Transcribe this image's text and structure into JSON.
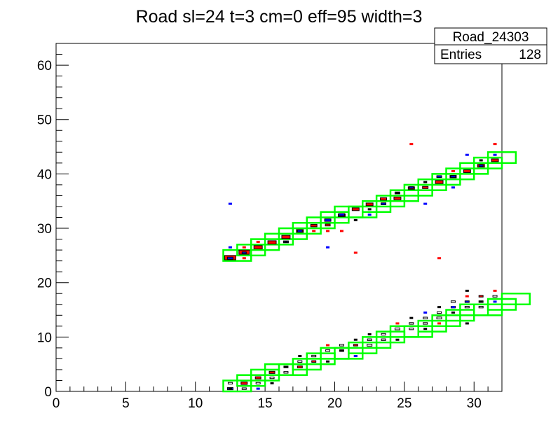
{
  "chart_data": {
    "type": "heatmap",
    "title": "Road sl=24 t=3 cm=0 eff=95 width=3",
    "xlabel": "",
    "ylabel": "",
    "xlim": [
      0,
      32
    ],
    "ylim": [
      0,
      64
    ],
    "x_ticks": [
      "0",
      "5",
      "10",
      "15",
      "20",
      "25",
      "30"
    ],
    "y_ticks": [
      "0",
      "10",
      "20",
      "30",
      "40",
      "50",
      "60"
    ],
    "grid": false,
    "stats_box": {
      "name": "Road_24303",
      "entries_label": "Entries",
      "entries_value": "128"
    },
    "colors": {
      "road": "#00ff00",
      "hit_red": "#ff0000",
      "hit_blue": "#0000ff",
      "axes": "#000000"
    },
    "road_bins": [
      [
        12,
        24
      ],
      [
        13,
        25
      ],
      [
        14,
        26
      ],
      [
        15,
        27
      ],
      [
        16,
        28
      ],
      [
        17,
        29
      ],
      [
        18,
        30
      ],
      [
        19,
        31
      ],
      [
        20,
        32
      ],
      [
        21,
        32
      ],
      [
        22,
        33
      ],
      [
        23,
        34
      ],
      [
        24,
        35
      ],
      [
        25,
        36
      ],
      [
        26,
        37
      ],
      [
        27,
        38
      ],
      [
        28,
        39
      ],
      [
        29,
        40
      ],
      [
        30,
        41
      ],
      [
        31,
        42
      ],
      [
        12,
        0
      ],
      [
        13,
        1
      ],
      [
        14,
        2
      ],
      [
        15,
        3
      ],
      [
        16,
        3
      ],
      [
        17,
        4
      ],
      [
        18,
        5
      ],
      [
        19,
        6
      ],
      [
        20,
        6
      ],
      [
        21,
        7
      ],
      [
        22,
        8
      ],
      [
        23,
        9
      ],
      [
        24,
        10
      ],
      [
        25,
        10
      ],
      [
        26,
        11
      ],
      [
        27,
        12
      ],
      [
        28,
        13
      ],
      [
        29,
        14
      ],
      [
        30,
        14
      ],
      [
        31,
        15
      ],
      [
        32,
        16
      ]
    ],
    "red_boxes": [
      [
        12.5,
        24.6,
        0.8
      ],
      [
        13.5,
        25.6,
        0.75
      ],
      [
        14.5,
        26.5,
        0.6
      ],
      [
        15.5,
        27.4,
        0.6
      ],
      [
        16.5,
        28.4,
        0.6
      ],
      [
        17.5,
        29.5,
        0.5
      ],
      [
        18.5,
        30.5,
        0.45
      ],
      [
        19.5,
        30.6,
        0.35
      ],
      [
        20.5,
        32.4,
        0.5
      ],
      [
        21.5,
        33.5,
        0.5
      ],
      [
        22.5,
        34.4,
        0.5
      ],
      [
        23.5,
        35.4,
        0.45
      ],
      [
        24.5,
        35.5,
        0.5
      ],
      [
        25.5,
        37.4,
        0.45
      ],
      [
        26.5,
        37.5,
        0.4
      ],
      [
        27.5,
        38.5,
        0.55
      ],
      [
        28.5,
        39.5,
        0.45
      ],
      [
        29.5,
        40.5,
        0.5
      ],
      [
        30.5,
        41.5,
        0.5
      ],
      [
        31.5,
        42.5,
        0.5
      ],
      [
        13.5,
        1.5,
        0.45
      ],
      [
        14.5,
        2.5,
        0.4
      ],
      [
        15.5,
        3.5,
        0.4
      ],
      [
        17.5,
        4.5,
        0.35
      ],
      [
        18.5,
        5.5,
        0.3
      ],
      [
        20.5,
        7.5,
        0.3
      ],
      [
        21.5,
        8.5,
        0.3
      ],
      [
        28.5,
        15.5,
        0.3
      ],
      [
        30.5,
        17.5,
        0.3
      ]
    ],
    "blue_boxes": [
      [
        12.5,
        24.5,
        0.4
      ],
      [
        13.5,
        25.5,
        0.3
      ],
      [
        16.5,
        27.5,
        0.35
      ],
      [
        17.5,
        29.5,
        0.35
      ],
      [
        19.5,
        31.5,
        0.45
      ],
      [
        20.5,
        32.5,
        0.4
      ],
      [
        23.5,
        34.5,
        0.35
      ],
      [
        24.5,
        36.5,
        0.35
      ],
      [
        25.5,
        37.5,
        0.3
      ],
      [
        27.5,
        39.5,
        0.35
      ],
      [
        28.5,
        39.5,
        0.35
      ],
      [
        30.5,
        41.5,
        0.3
      ],
      [
        12.5,
        0.5,
        0.4
      ],
      [
        29.5,
        16.5,
        0.3
      ]
    ],
    "hollow_boxes": [
      [
        12.5,
        1.5,
        0.3
      ],
      [
        14.5,
        1.5,
        0.3
      ],
      [
        15.5,
        2.5,
        0.3
      ],
      [
        16.5,
        3.5,
        0.3
      ],
      [
        17.5,
        5.5,
        0.3
      ],
      [
        18.5,
        6.5,
        0.3
      ],
      [
        19.5,
        7.5,
        0.3
      ],
      [
        20.5,
        8.5,
        0.3
      ],
      [
        22.5,
        8.5,
        0.35
      ],
      [
        22.5,
        9.5,
        0.3
      ],
      [
        23.5,
        10.5,
        0.3
      ],
      [
        24.5,
        11.5,
        0.35
      ],
      [
        25.5,
        11.5,
        0.3
      ],
      [
        25.5,
        12.5,
        0.3
      ],
      [
        26.5,
        13.5,
        0.3
      ],
      [
        27.5,
        13.5,
        0.35
      ],
      [
        27.5,
        14.5,
        0.3
      ],
      [
        28.5,
        16.5,
        0.3
      ],
      [
        29.5,
        15.5,
        0.3
      ],
      [
        30.5,
        15.5,
        0.3
      ],
      [
        30.5,
        16.5,
        0.3
      ],
      [
        31.5,
        17.5,
        0.3
      ],
      [
        13.5,
        0.5,
        0.3
      ],
      [
        16.5,
        4.5,
        0.3
      ],
      [
        23.5,
        9.5,
        0.3
      ],
      [
        26.5,
        12.5,
        0.3
      ]
    ],
    "tiny_marks_red": [
      [
        13.5,
        26.5
      ],
      [
        13.5,
        24.5
      ],
      [
        14.5,
        27.5
      ],
      [
        18.5,
        29.5
      ],
      [
        19.5,
        29.5
      ],
      [
        20.5,
        29.5
      ],
      [
        21.5,
        25.5
      ],
      [
        25.5,
        45.5
      ],
      [
        27.5,
        24.5
      ],
      [
        28.5,
        40.5
      ],
      [
        31.5,
        45.5
      ],
      [
        19.5,
        8.5
      ],
      [
        21.5,
        6.5
      ],
      [
        24.5,
        12.5
      ],
      [
        27.5,
        12.5
      ],
      [
        29.5,
        17.5
      ],
      [
        31.5,
        18.5
      ]
    ],
    "tiny_marks_blue": [
      [
        12.5,
        34.5
      ],
      [
        12.5,
        26.5
      ],
      [
        19.5,
        26.5
      ],
      [
        22.5,
        32.5
      ],
      [
        26.5,
        34.5
      ],
      [
        26.5,
        38.5
      ],
      [
        28.5,
        37.5
      ],
      [
        29.5,
        43.5
      ],
      [
        31.5,
        43.5
      ],
      [
        21.5,
        6.5
      ],
      [
        14.5,
        0.5
      ],
      [
        26.5,
        14.5
      ],
      [
        28.5,
        15.5
      ],
      [
        31.5,
        16.5
      ]
    ],
    "tiny_marks_black": [
      [
        15.5,
        1.5
      ],
      [
        16.5,
        4.5
      ],
      [
        17.5,
        6.5
      ],
      [
        19.5,
        5.5
      ],
      [
        20.5,
        7.5
      ],
      [
        21.5,
        9.5
      ],
      [
        22.5,
        10.5
      ],
      [
        24.5,
        9.5
      ],
      [
        25.5,
        13.5
      ],
      [
        26.5,
        11.5
      ],
      [
        27.5,
        15.5
      ],
      [
        28.5,
        14.5
      ],
      [
        29.5,
        12.5
      ],
      [
        29.5,
        18.5
      ],
      [
        30.5,
        16.5
      ],
      [
        12.5,
        0.5
      ],
      [
        16.5,
        27.5
      ],
      [
        21.5,
        31.5
      ],
      [
        24.5,
        36.5
      ],
      [
        26.5,
        38.5
      ],
      [
        30.5,
        42.5
      ],
      [
        22.5,
        33.5
      ]
    ]
  }
}
